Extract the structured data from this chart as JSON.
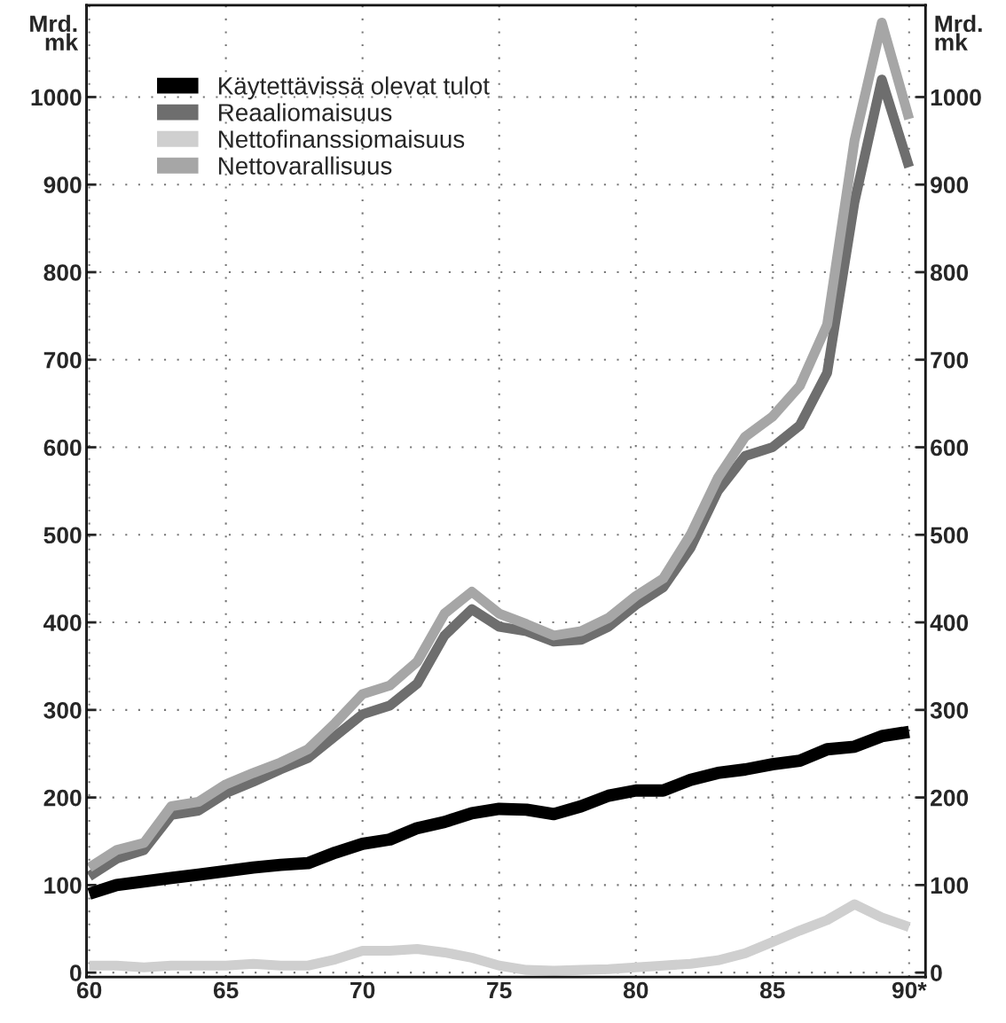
{
  "chart_data": {
    "type": "line",
    "ylabel": "Mrd.\nmk",
    "y2label": "Mrd.\nmk",
    "x": [
      60,
      61,
      62,
      63,
      64,
      65,
      66,
      67,
      68,
      69,
      70,
      71,
      72,
      73,
      74,
      75,
      76,
      77,
      78,
      79,
      80,
      81,
      82,
      83,
      84,
      85,
      86,
      87,
      88,
      89,
      90
    ],
    "series": [
      {
        "name": "Käytettävissä olevat tulot",
        "color": "#000000",
        "values": [
          90,
          100,
          104,
          108,
          112,
          116,
          120,
          123,
          125,
          137,
          147,
          152,
          165,
          172,
          182,
          187,
          186,
          181,
          190,
          202,
          208,
          208,
          220,
          228,
          232,
          238,
          242,
          255,
          258,
          270,
          275
        ]
      },
      {
        "name": "Reaaliomaisuus",
        "color": "#6e6e6e",
        "values": [
          110,
          130,
          140,
          180,
          185,
          205,
          218,
          232,
          245,
          270,
          295,
          305,
          330,
          385,
          415,
          395,
          390,
          378,
          380,
          395,
          420,
          440,
          485,
          550,
          590,
          600,
          625,
          685,
          880,
          1020,
          920
        ]
      },
      {
        "name": "Nettofinanssiomaisuus",
        "color": "#cfcfcf",
        "values": [
          8,
          8,
          6,
          8,
          8,
          8,
          10,
          8,
          8,
          15,
          25,
          25,
          27,
          23,
          17,
          8,
          3,
          2,
          3,
          4,
          6,
          8,
          10,
          14,
          22,
          35,
          48,
          60,
          78,
          63,
          52
        ]
      },
      {
        "name": "Nettovarallisuus",
        "color": "#a6a6a6",
        "values": [
          120,
          140,
          148,
          190,
          195,
          215,
          228,
          240,
          255,
          285,
          318,
          328,
          355,
          410,
          435,
          410,
          398,
          385,
          390,
          405,
          430,
          450,
          500,
          565,
          612,
          635,
          670,
          740,
          950,
          1085,
          975
        ]
      }
    ],
    "xlim": [
      59.9,
      90.6
    ],
    "xticks": [
      60,
      65,
      70,
      75,
      80,
      85,
      {
        "value": 90,
        "label": "90*"
      }
    ],
    "ylim": [
      -5,
      1105
    ],
    "yticks": [
      0,
      100,
      200,
      300,
      400,
      500,
      600,
      700,
      800,
      900,
      1000
    ],
    "y2lim": [
      -5,
      1105
    ],
    "y2ticks": [
      0,
      100,
      200,
      300,
      400,
      500,
      600,
      700,
      800,
      900,
      1000
    ],
    "grid": true,
    "legend": "top left"
  }
}
